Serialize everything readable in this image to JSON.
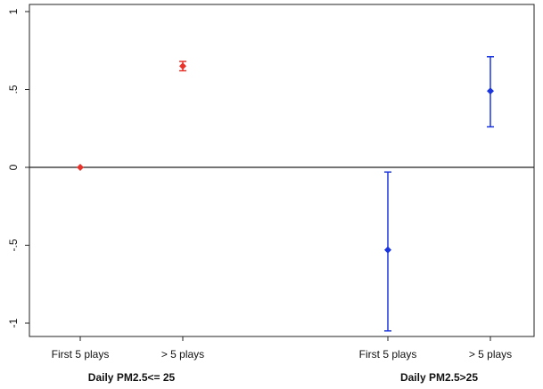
{
  "chart_data": {
    "type": "scatter",
    "title": "",
    "xlabel": "",
    "ylabel": "",
    "ylim": [
      -1.1,
      1.1
    ],
    "yticks": [
      1,
      0.5,
      0,
      -0.5,
      -1
    ],
    "ytick_labels": [
      "1",
      ".5",
      "0",
      "-.5",
      "-1"
    ],
    "reference_line": 0,
    "grid": false,
    "legend": "none",
    "groups": [
      {
        "label": "Daily PM2.5<= 25",
        "color": "#e8322a",
        "points": [
          {
            "category": "First 5 plays",
            "value": 0.0,
            "ci_low": 0.0,
            "ci_high": 0.0
          },
          {
            "category": "> 5 plays",
            "value": 0.65,
            "ci_low": 0.62,
            "ci_high": 0.68
          }
        ]
      },
      {
        "label": "Daily PM2.5>25",
        "color": "#1a35e0",
        "points": [
          {
            "category": "First 5 plays",
            "value": -0.53,
            "ci_low": -1.05,
            "ci_high": -0.03
          },
          {
            "category": "> 5 plays",
            "value": 0.49,
            "ci_low": 0.26,
            "ci_high": 0.71
          }
        ]
      }
    ]
  }
}
